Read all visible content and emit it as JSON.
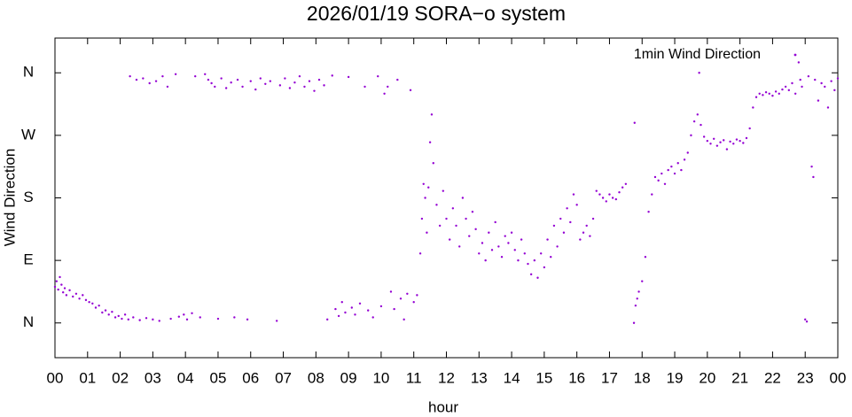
{
  "chart_data": {
    "type": "scatter",
    "title": "2026/01/19 SORA−o system",
    "x_label": "hour",
    "y_label": "Wind Direction",
    "legend": "upper right",
    "xlim": [
      0,
      24
    ],
    "ylim": [
      -50,
      410
    ],
    "xticks": [
      {
        "value": 0,
        "label": "00"
      },
      {
        "value": 1,
        "label": "01"
      },
      {
        "value": 2,
        "label": "02"
      },
      {
        "value": 3,
        "label": "03"
      },
      {
        "value": 4,
        "label": "04"
      },
      {
        "value": 5,
        "label": "05"
      },
      {
        "value": 6,
        "label": "06"
      },
      {
        "value": 7,
        "label": "07"
      },
      {
        "value": 8,
        "label": "08"
      },
      {
        "value": 9,
        "label": "09"
      },
      10,
      11,
      12,
      13,
      14,
      15,
      16,
      17,
      18,
      19,
      20,
      21,
      22,
      23,
      {
        "value": 24,
        "label": "00"
      }
    ],
    "yticks": [
      {
        "value": 0,
        "label": "N"
      },
      {
        "value": 90,
        "label": "E"
      },
      {
        "value": 180,
        "label": "S"
      },
      {
        "value": 270,
        "label": "W"
      },
      {
        "value": 360,
        "label": "N"
      }
    ],
    "series": [
      {
        "name": "1min Wind Direction",
        "color": "#9400d3",
        "x": [
          0.0,
          0.05,
          0.1,
          0.15,
          0.2,
          0.25,
          0.3,
          0.35,
          0.45,
          0.55,
          0.65,
          0.75,
          0.85,
          0.95,
          1.05,
          1.15,
          1.25,
          1.35,
          1.45,
          1.55,
          1.65,
          1.75,
          1.85,
          1.95,
          2.05,
          2.15,
          2.25,
          2.3,
          2.4,
          2.5,
          2.6,
          2.7,
          2.8,
          2.9,
          3.0,
          3.1,
          3.2,
          3.3,
          3.45,
          3.55,
          3.7,
          3.8,
          3.95,
          4.05,
          4.2,
          4.3,
          4.45,
          4.6,
          4.7,
          4.8,
          4.9,
          5.0,
          5.1,
          5.25,
          5.4,
          5.5,
          5.6,
          5.75,
          5.9,
          6.0,
          6.15,
          6.3,
          6.45,
          6.6,
          6.8,
          6.9,
          7.05,
          7.2,
          7.35,
          7.5,
          7.65,
          7.8,
          7.95,
          8.1,
          8.25,
          8.35,
          8.5,
          8.6,
          8.7,
          8.8,
          8.9,
          9.0,
          9.1,
          9.2,
          9.35,
          9.5,
          9.6,
          9.75,
          9.9,
          10.0,
          10.1,
          10.2,
          10.3,
          10.4,
          10.5,
          10.6,
          10.7,
          10.8,
          10.9,
          11.0,
          11.1,
          11.2,
          11.25,
          11.3,
          11.35,
          11.4,
          11.45,
          11.5,
          11.55,
          11.6,
          11.7,
          11.8,
          11.9,
          12.0,
          12.1,
          12.2,
          12.3,
          12.4,
          12.5,
          12.6,
          12.7,
          12.8,
          12.9,
          13.0,
          13.1,
          13.2,
          13.3,
          13.4,
          13.5,
          13.6,
          13.7,
          13.8,
          13.9,
          14.0,
          14.1,
          14.2,
          14.3,
          14.4,
          14.5,
          14.6,
          14.7,
          14.8,
          14.9,
          15.0,
          15.1,
          15.2,
          15.3,
          15.4,
          15.5,
          15.6,
          15.7,
          15.8,
          15.9,
          16.0,
          16.1,
          16.2,
          16.3,
          16.4,
          16.5,
          16.6,
          16.7,
          16.8,
          16.9,
          17.0,
          17.1,
          17.2,
          17.3,
          17.4,
          17.5,
          17.75,
          17.77,
          17.8,
          17.85,
          17.9,
          18.0,
          18.1,
          18.2,
          18.3,
          18.4,
          18.5,
          18.6,
          18.7,
          18.8,
          18.9,
          19.0,
          19.1,
          19.2,
          19.3,
          19.4,
          19.5,
          19.6,
          19.7,
          19.75,
          19.8,
          19.9,
          20.0,
          20.1,
          20.2,
          20.3,
          20.4,
          20.5,
          20.6,
          20.7,
          20.8,
          20.9,
          21.0,
          21.1,
          21.2,
          21.3,
          21.4,
          21.5,
          21.6,
          21.7,
          21.8,
          21.9,
          22.0,
          22.1,
          22.2,
          22.3,
          22.4,
          22.5,
          22.6,
          22.7,
          22.8,
          22.85,
          22.9,
          23.0,
          23.05,
          23.1,
          23.2,
          23.25,
          23.3,
          23.4,
          23.5,
          23.6,
          23.7,
          23.8,
          23.9,
          24.0
        ],
        "values": [
          52,
          60,
          48,
          66,
          55,
          44,
          50,
          40,
          47,
          38,
          42,
          35,
          40,
          33,
          30,
          28,
          22,
          25,
          15,
          18,
          12,
          16,
          8,
          10,
          6,
          12,
          5,
          355,
          8,
          350,
          4,
          352,
          7,
          345,
          5,
          348,
          3,
          355,
          340,
          6,
          358,
          9,
          12,
          5,
          14,
          355,
          8,
          358,
          350,
          345,
          340,
          6,
          352,
          338,
          346,
          8,
          350,
          340,
          5,
          348,
          336,
          352,
          344,
          348,
          3,
          342,
          352,
          338,
          346,
          355,
          340,
          348,
          334,
          350,
          342,
          5,
          356,
          20,
          10,
          30,
          15,
          354,
          22,
          12,
          28,
          340,
          18,
          8,
          355,
          24,
          330,
          340,
          45,
          20,
          350,
          35,
          5,
          42,
          335,
          30,
          40,
          100,
          150,
          200,
          180,
          130,
          195,
          260,
          300,
          230,
          170,
          140,
          190,
          150,
          120,
          165,
          140,
          110,
          180,
          150,
          125,
          160,
          135,
          100,
          115,
          90,
          130,
          105,
          145,
          110,
          95,
          125,
          115,
          130,
          105,
          90,
          120,
          100,
          85,
          70,
          90,
          65,
          100,
          80,
          120,
          95,
          140,
          110,
          150,
          130,
          165,
          145,
          185,
          170,
          120,
          130,
          140,
          125,
          150,
          190,
          185,
          180,
          175,
          185,
          180,
          178,
          188,
          195,
          200,
          0,
          288,
          25,
          35,
          45,
          60,
          95,
          160,
          185,
          210,
          205,
          215,
          200,
          220,
          225,
          215,
          230,
          220,
          235,
          245,
          270,
          290,
          300,
          360,
          285,
          268,
          262,
          258,
          265,
          255,
          260,
          263,
          250,
          261,
          258,
          264,
          262,
          259,
          266,
          280,
          310,
          325,
          330,
          328,
          332,
          330,
          327,
          333,
          330,
          336,
          340,
          335,
          345,
          330,
          375,
          350,
          340,
          5,
          2,
          355,
          225,
          210,
          350,
          320,
          345,
          340,
          310,
          348,
          335,
          352
        ]
      }
    ]
  }
}
